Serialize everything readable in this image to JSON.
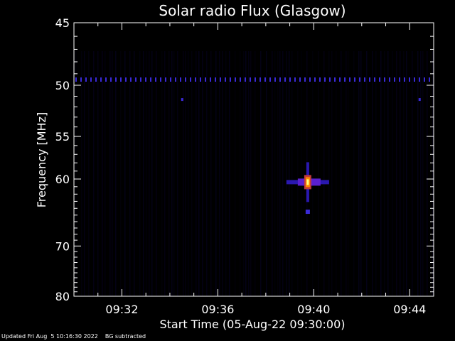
{
  "chart_data": {
    "type": "heatmap",
    "title": "Solar radio Flux (Glasgow)",
    "xlabel": "Start Time (05-Aug-22 09:30:00)",
    "ylabel": "Frequency [MHz]",
    "x_ticks": [
      "09:32",
      "09:36",
      "09:40",
      "09:44"
    ],
    "x_tick_minutes": [
      2,
      6,
      10,
      14
    ],
    "x_range_minutes": [
      0,
      15
    ],
    "y_ticks": [
      45,
      50,
      55,
      60,
      70,
      80
    ],
    "y_range_mhz": [
      45,
      80
    ],
    "y_scale": "reciprocal",
    "colormap": [
      "#000000",
      "#1a0a8a",
      "#5a1fd0",
      "#c23a3a",
      "#ff8a00",
      "#ffff80"
    ],
    "interference_band_mhz": 49.5,
    "burst": {
      "time_minute": 9.75,
      "freq_mhz": 60.4,
      "intensity": 1.0
    }
  },
  "footer": {
    "updated": "Updated Fri Aug  5 10:16:30 2022",
    "bg": "BG subtracted"
  }
}
